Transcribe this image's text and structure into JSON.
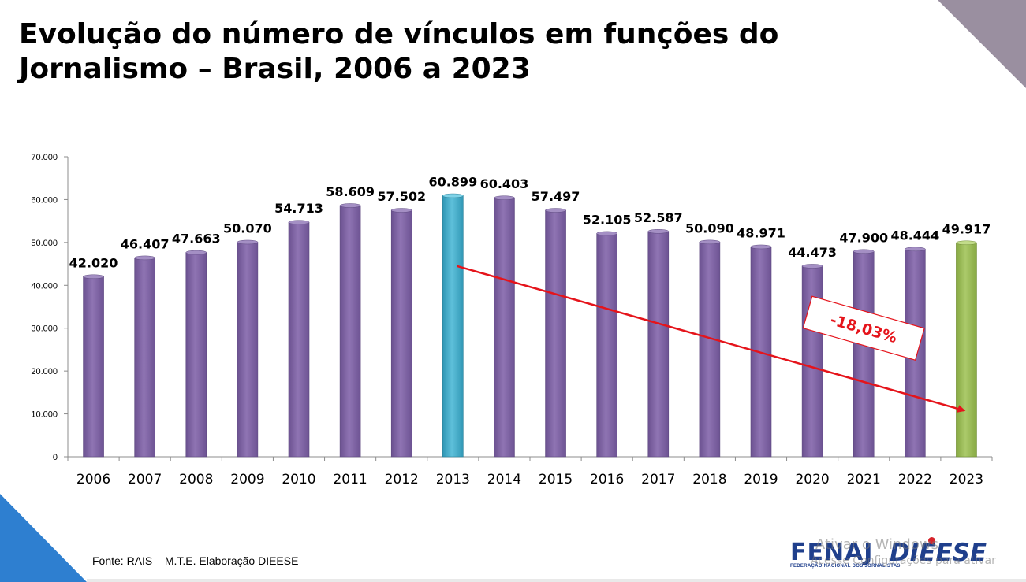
{
  "slide": {
    "title": "Evolução do número de vínculos em funções do Jornalismo – Brasil, 2006 a 2023",
    "source": "Fonte: RAIS – M.T.E.  Elaboração DIEESE",
    "logo_left": "FENAJ",
    "logo_left_subtitle": "FEDERAÇÃO NACIONAL DOS JORNALISTAS",
    "logo_right": "DIEESE",
    "watermark_line1": "Ativar o Windows",
    "watermark_line2": "Acesse Configurações para ativar"
  },
  "colors": {
    "bar_default": "#8064a2",
    "bar_peak": "#4bacc6",
    "bar_latest": "#9bbb59",
    "trend_arrow": "#e5141b",
    "corner_top_right": "#9a8fa0",
    "corner_bottom_left": "#2e7fd0"
  },
  "chart_data": {
    "type": "bar",
    "title": "Evolução do número de vínculos em funções do Jornalismo – Brasil, 2006 a 2023",
    "xlabel": "",
    "ylabel": "",
    "ylim": [
      0,
      70000
    ],
    "yticks": [
      0,
      10000,
      20000,
      30000,
      40000,
      50000,
      60000,
      70000
    ],
    "ytick_labels": [
      "0",
      "10.000",
      "20.000",
      "30.000",
      "40.000",
      "50.000",
      "60.000",
      "70.000"
    ],
    "grid": false,
    "categories": [
      "2006",
      "2007",
      "2008",
      "2009",
      "2010",
      "2011",
      "2012",
      "2013",
      "2014",
      "2015",
      "2016",
      "2017",
      "2018",
      "2019",
      "2020",
      "2021",
      "2022",
      "2023"
    ],
    "values": [
      42020,
      46407,
      47663,
      50070,
      54713,
      58609,
      57502,
      60899,
      60403,
      57497,
      52105,
      52587,
      50090,
      48971,
      44473,
      47900,
      48444,
      49917
    ],
    "value_labels": [
      "42.020",
      "46.407",
      "47.663",
      "50.070",
      "54.713",
      "58.609",
      "57.502",
      "60.899",
      "60.403",
      "57.497",
      "52.105",
      "52.587",
      "50.090",
      "48.971",
      "44.473",
      "47.900",
      "48.444",
      "49.917"
    ],
    "highlight": {
      "peak_category": "2013",
      "latest_category": "2023"
    },
    "annotation": {
      "text": "-18,03%",
      "description": "Trend arrow from 2013 to 2023",
      "from_category": "2013",
      "to_category": "2023",
      "from_value": 44500,
      "to_value": 10800,
      "label_category_position": 15.5,
      "label_value": 30000
    }
  }
}
